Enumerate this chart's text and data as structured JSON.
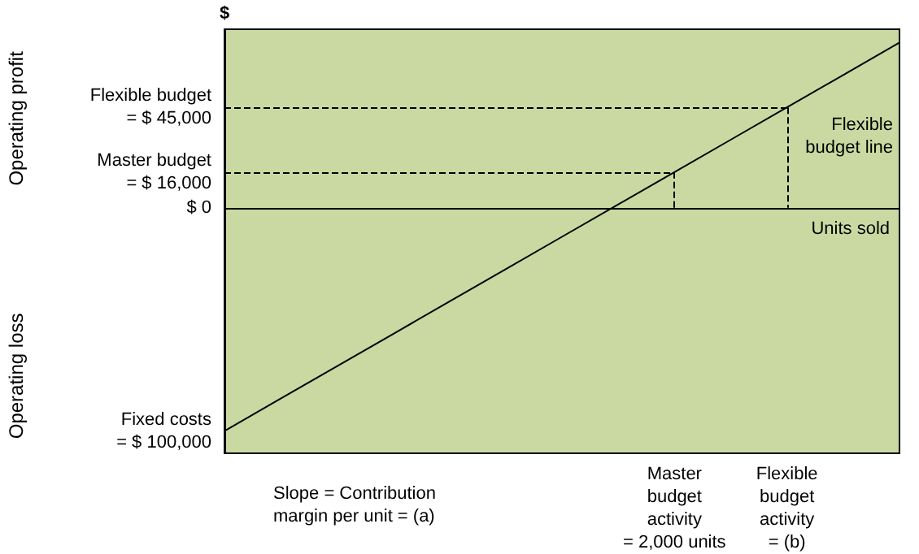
{
  "chart_data": {
    "type": "line",
    "ylabel": "$",
    "xlabel": "Units sold",
    "categories": [
      null,
      null,
      null,
      null,
      null,
      null,
      null,
      null,
      "Master\nbudget\nactivity\n= 2,000 units",
      null,
      "Flexible\nbudget\nactivity\n= (b)",
      null,
      null
    ],
    "series": [
      {
        "color": "#000000",
        "values": [
          -100000,
          -85500,
          -71000,
          -56500,
          -42000,
          -27500,
          -13000,
          1500,
          16000,
          30500,
          45000,
          59500,
          74000
        ]
      }
    ],
    "ylim": [
      -110000,
      80000
    ],
    "yticks": [
      {
        "value": -100000,
        "label": "Fixed costs\n= $ 100,000"
      },
      {
        "value": 0,
        "label": "$ 0"
      },
      {
        "value": 16000,
        "label": "Master budget\n= $ 16,000"
      },
      {
        "value": 45000,
        "label": "Flexible budget\n= $ 45,000"
      }
    ],
    "ref_lines": [
      {
        "axis": "y",
        "value": 16000,
        "line_style": "dashed"
      },
      {
        "axis": "y",
        "value": 45000,
        "line_style": "dashed"
      },
      {
        "axis": "x",
        "value": "Master\nbudget\nactivity\n= 2,000 units",
        "line_style": "dashed"
      },
      {
        "axis": "x",
        "value": "Flexible\nbudget\nactivity\n= (b)",
        "line_style": "dashed"
      }
    ],
    "annotations": [
      "Operating profit",
      "Operating loss",
      "Flexible\nbudget line",
      "Slope = Contribution\nmargin per unit = (a)"
    ],
    "grid": false,
    "marker": "none",
    "line_style": "solid"
  }
}
